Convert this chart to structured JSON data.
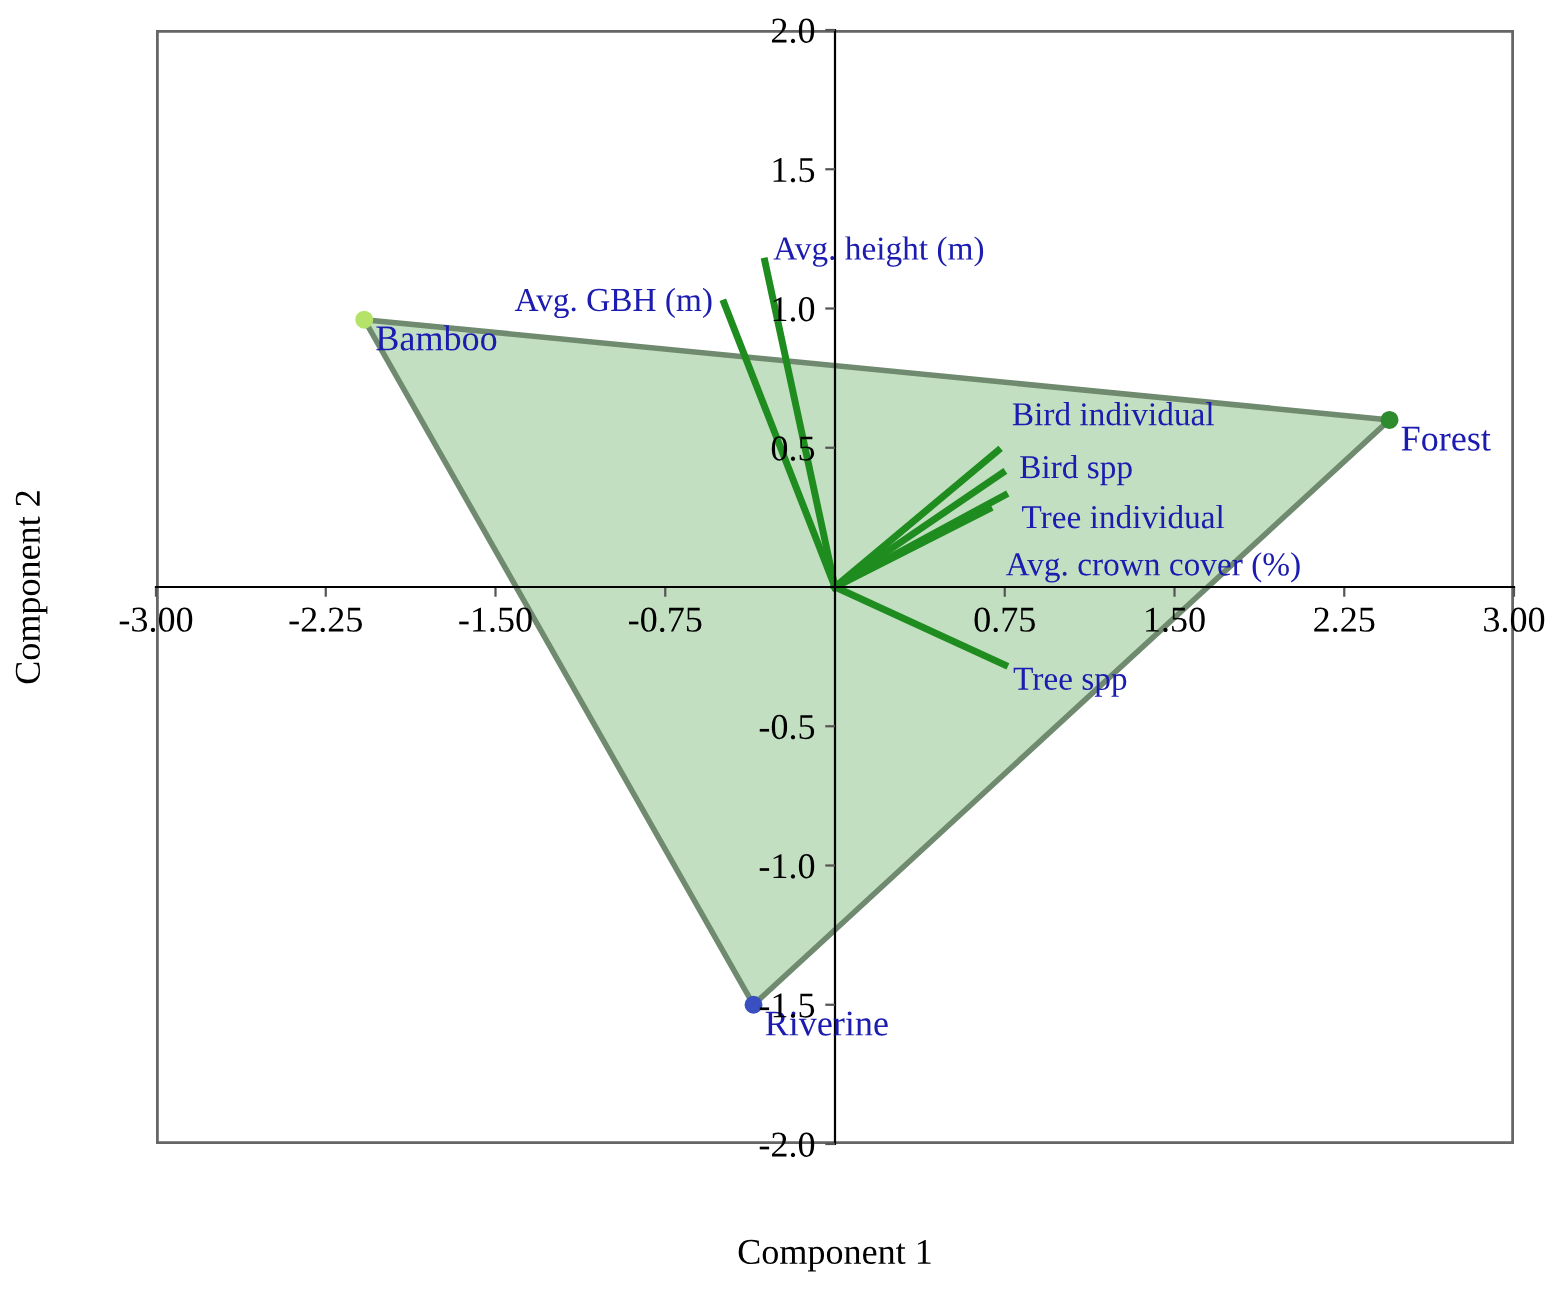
{
  "chart_data": {
    "type": "scatter",
    "xlabel": "Component 1",
    "ylabel": "Component 2",
    "xlim": [
      -3,
      3
    ],
    "ylim": [
      -2,
      2
    ],
    "xticks": [
      {
        "value": -3,
        "label": "-3.00"
      },
      {
        "value": -2.25,
        "label": "-2.25"
      },
      {
        "value": -1.5,
        "label": "-1.50"
      },
      {
        "value": -0.75,
        "label": "-0.75"
      },
      {
        "value": 0.75,
        "label": "0.75"
      },
      {
        "value": 1.5,
        "label": "1.50"
      },
      {
        "value": 2.25,
        "label": "2.25"
      },
      {
        "value": 3,
        "label": "3.00"
      }
    ],
    "yticks": [
      {
        "value": -2,
        "label": "-2.0"
      },
      {
        "value": -1.5,
        "label": "-1.5"
      },
      {
        "value": -1,
        "label": "-1.0"
      },
      {
        "value": -0.5,
        "label": "-0.5"
      },
      {
        "value": 0.5,
        "label": "0.5"
      },
      {
        "value": 1,
        "label": "1.0"
      },
      {
        "value": 1.5,
        "label": "1.5"
      },
      {
        "value": 2,
        "label": "2.0"
      }
    ],
    "grid": false,
    "legend": false,
    "series": [
      {
        "type": "area",
        "color": "#c3dfc1",
        "x": [
          -2.08,
          2.45,
          -0.36,
          -2.08
        ],
        "values": [
          0.96,
          0.6,
          -1.5,
          0.96
        ]
      },
      {
        "type": "line",
        "name": "Avg. height (m)",
        "color": "#1f8c1f",
        "x": [
          0,
          -0.31
        ],
        "values": [
          0,
          1.17
        ]
      },
      {
        "type": "line",
        "name": "Avg. GBH (m)",
        "color": "#1f8c1f",
        "x": [
          0,
          -0.49
        ],
        "values": [
          0,
          1.02
        ]
      },
      {
        "type": "line",
        "name": "Bird individual",
        "color": "#1f8c1f",
        "x": [
          0,
          0.72
        ],
        "values": [
          0,
          0.49
        ]
      },
      {
        "type": "line",
        "name": "Bird spp",
        "color": "#1f8c1f",
        "x": [
          0,
          0.74
        ],
        "values": [
          0,
          0.41
        ]
      },
      {
        "type": "line",
        "name": "Tree individual",
        "color": "#1f8c1f",
        "x": [
          0,
          0.75
        ],
        "values": [
          0,
          0.33
        ]
      },
      {
        "type": "line",
        "name": "Avg. crown cover (%)",
        "color": "#1f8c1f",
        "x": [
          0,
          0.68
        ],
        "values": [
          0,
          0.28
        ]
      },
      {
        "type": "line",
        "name": "Tree spp",
        "color": "#1f8c1f",
        "x": [
          0,
          0.75
        ],
        "values": [
          0,
          -0.28
        ]
      },
      {
        "colors": [
          "#b5e36a",
          "#2e8b2e",
          "#3a4fc0"
        ],
        "x": [
          -2.08,
          2.45,
          -0.36
        ],
        "values": [
          0.96,
          0.6,
          -1.5
        ]
      }
    ],
    "annotations": [
      {
        "text": "Bamboo",
        "x": -2.08,
        "y": 0.96
      },
      {
        "text": "Forest",
        "x": 2.45,
        "y": 0.6
      },
      {
        "text": "Riverine",
        "x": -0.36,
        "y": -1.5
      }
    ]
  }
}
